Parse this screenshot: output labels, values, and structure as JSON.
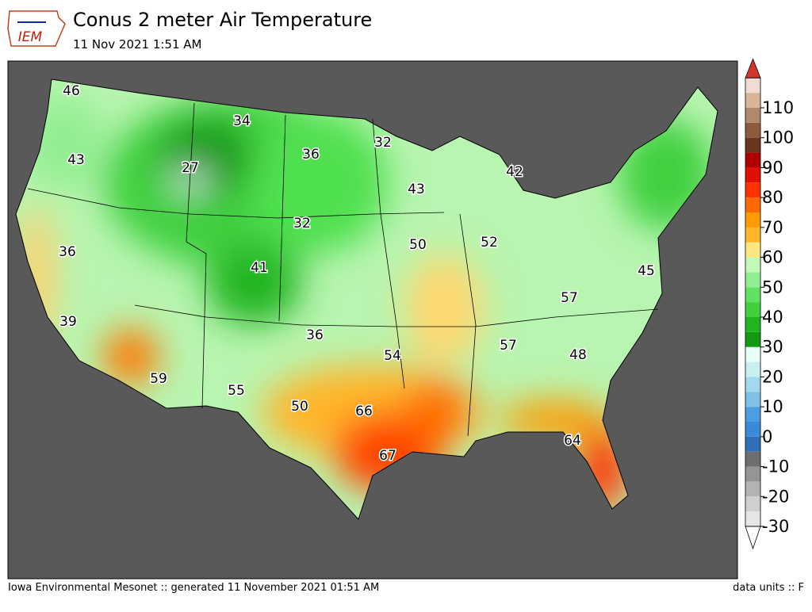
{
  "header": {
    "logo": "IEM",
    "title": "Conus 2 meter Air Temperature",
    "subtitle": "11 Nov 2021 1:51 AM"
  },
  "labels": [
    46,
    34,
    32,
    43,
    27,
    36,
    42,
    43,
    32,
    36,
    50,
    52,
    41,
    45,
    57,
    39,
    36,
    57,
    54,
    48,
    59,
    55,
    50,
    66,
    64,
    67
  ],
  "colorbar": {
    "ticks": [
      -30,
      -20,
      -10,
      0,
      10,
      20,
      30,
      40,
      50,
      60,
      70,
      80,
      90,
      100,
      110
    ],
    "levels": [
      -30,
      -25,
      -20,
      -15,
      -10,
      -5,
      0,
      5,
      10,
      15,
      20,
      25,
      30,
      35,
      40,
      45,
      50,
      55,
      60,
      65,
      70,
      75,
      80,
      85,
      90,
      95,
      100,
      105,
      110,
      115,
      120
    ],
    "colors": [
      "#e6e6e6",
      "#cfcfcf",
      "#b3b3b3",
      "#959595",
      "#6e6e6e",
      "#2f6fb8",
      "#3a8ad8",
      "#4c9ee3",
      "#7fc0e8",
      "#a3d9ef",
      "#c8f0f2",
      "#e8fff6",
      "#139a13",
      "#22b522",
      "#3fd03f",
      "#62e062",
      "#92ee92",
      "#c2f8b8",
      "#ffe680",
      "#ffb62a",
      "#ff9a00",
      "#ff6a00",
      "#ff3300",
      "#e01000",
      "#b00000",
      "#6b3620",
      "#8c5a3c",
      "#b0896a",
      "#d8b595",
      "#f0dcd2",
      "#f4b19a",
      "#e88064",
      "#dd6a4e"
    ],
    "over": "#d2362a",
    "under": "#ffffff"
  },
  "footer": {
    "left": "Iowa Environmental Mesonet :: generated 11 November 2021 01:51 AM",
    "right": "data units :: F"
  }
}
